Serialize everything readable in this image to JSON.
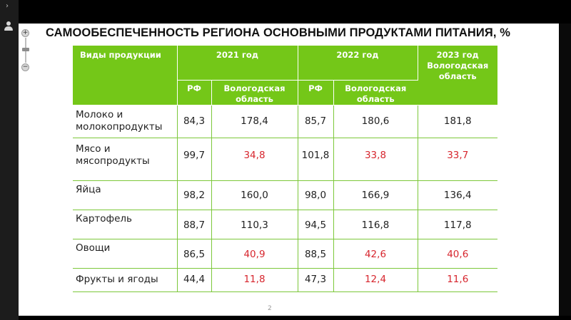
{
  "viewer": {
    "expand_glyph": "›",
    "user_icon": "user-icon",
    "zoom_plus": "+",
    "zoom_minus": "−"
  },
  "slide": {
    "title": "САМООБЕСПЕЧЕННОСТЬ РЕГИОНА ОСНОВНЫМИ ПРОДУКТАМИ ПИТАНИЯ, %",
    "page_number": "2",
    "colors": {
      "header_bg": "#74c718",
      "grid_line": "#7cc83a",
      "highlight_red": "#d7262e"
    },
    "table": {
      "header_product": "Виды продукции",
      "year_2021": "2021 год",
      "year_2022": "2022 год",
      "year_2023": "2023 год Вологодская область",
      "sub_rf": "РФ",
      "sub_vologda": "Вологодская область",
      "rows": [
        {
          "product": "Молоко и молокопродукты",
          "rf2021": "84,3",
          "vo2021": "178,4",
          "rf2022": "85,7",
          "vo2022": "180,6",
          "vo2023": "181,8"
        },
        {
          "product": "Мясо и мясопродукты",
          "rf2021": "99,7",
          "vo2021": "34,8",
          "rf2022": "101,8",
          "vo2022": "33,8",
          "vo2023": "33,7"
        },
        {
          "product": "Яйца",
          "rf2021": "98,2",
          "vo2021": "160,0",
          "rf2022": "98,0",
          "vo2022": "166,9",
          "vo2023": "136,4"
        },
        {
          "product": "Картофель",
          "rf2021": "88,7",
          "vo2021": "110,3",
          "rf2022": "94,5",
          "vo2022": "116,8",
          "vo2023": "117,8"
        },
        {
          "product": "Овощи",
          "rf2021": "86,5",
          "vo2021": "40,9",
          "rf2022": "88,5",
          "vo2022": "42,6",
          "vo2023": "40,6"
        },
        {
          "product": "Фрукты и ягоды",
          "rf2021": "44,4",
          "vo2021": "11,8",
          "rf2022": "47,3",
          "vo2022": "12,4",
          "vo2023": "11,6"
        }
      ]
    }
  }
}
